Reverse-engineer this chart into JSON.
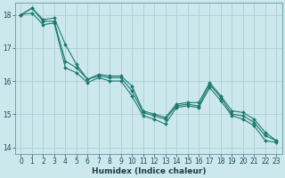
{
  "xlabel": "Humidex (Indice chaleur)",
  "background_color": "#cde8ed",
  "grid_color": "#aacdd4",
  "line_color": "#1a7a6e",
  "xlim": [
    -0.5,
    23.5
  ],
  "ylim": [
    13.8,
    18.35
  ],
  "yticks": [
    14,
    15,
    16,
    17,
    18
  ],
  "xticks": [
    0,
    1,
    2,
    3,
    4,
    5,
    6,
    7,
    8,
    9,
    10,
    11,
    12,
    13,
    14,
    15,
    16,
    17,
    18,
    19,
    20,
    21,
    22,
    23
  ],
  "series1_x": [
    0,
    1,
    2,
    3,
    4,
    5,
    6,
    7,
    8,
    9,
    10,
    11,
    12,
    13,
    14,
    15,
    16,
    17,
    18,
    19,
    20,
    21,
    22,
    23
  ],
  "series1_y": [
    18.0,
    18.2,
    17.85,
    17.9,
    17.1,
    16.5,
    16.05,
    16.2,
    16.15,
    16.15,
    15.85,
    15.1,
    15.0,
    14.9,
    15.3,
    15.35,
    15.35,
    15.95,
    15.55,
    15.1,
    15.05,
    14.85,
    14.45,
    14.2
  ],
  "series2_x": [
    0,
    1,
    2,
    3,
    4,
    5,
    6,
    7,
    8,
    9,
    10,
    11,
    12,
    13,
    14,
    15,
    16,
    17,
    18,
    19,
    20,
    21,
    22,
    23
  ],
  "series2_y": [
    18.0,
    18.2,
    17.8,
    17.8,
    16.6,
    16.4,
    16.05,
    16.15,
    16.1,
    16.1,
    15.7,
    15.05,
    14.95,
    14.85,
    15.25,
    15.3,
    15.25,
    15.9,
    15.5,
    15.0,
    14.95,
    14.75,
    14.35,
    14.2
  ],
  "series3_x": [
    0,
    1,
    2,
    3,
    4,
    5,
    6,
    7,
    8,
    9,
    10,
    11,
    12,
    13,
    14,
    15,
    16,
    17,
    18,
    19,
    20,
    21,
    22,
    23
  ],
  "series3_y": [
    18.0,
    18.05,
    17.7,
    17.75,
    16.4,
    16.25,
    15.95,
    16.1,
    16.0,
    16.0,
    15.55,
    14.95,
    14.85,
    14.7,
    15.2,
    15.25,
    15.2,
    15.8,
    15.4,
    14.95,
    14.85,
    14.65,
    14.2,
    14.15
  ]
}
